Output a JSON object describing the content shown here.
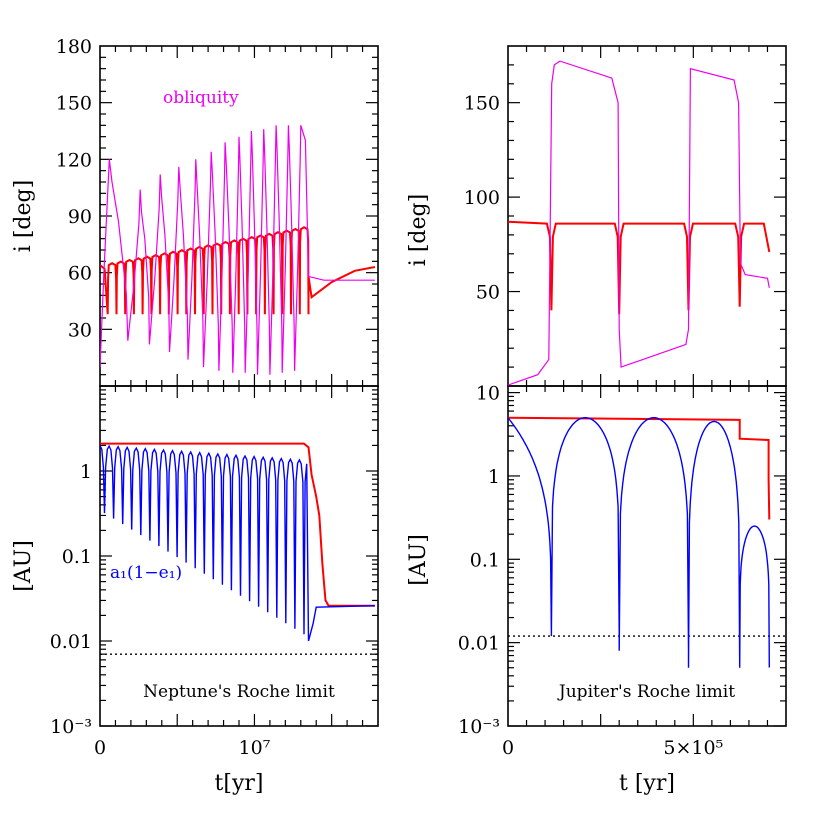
{
  "chart_data": [
    {
      "panel": "top-left",
      "type": "line",
      "xlim": [
        0,
        18000000
      ],
      "ylim": [
        0,
        180
      ],
      "y_ticks": [
        30,
        60,
        90,
        120,
        150,
        180
      ],
      "y_tick_labels": [
        "30",
        "60",
        "90",
        "120",
        "150",
        "180"
      ],
      "xlabel": "",
      "ylabel": "i [deg]",
      "annotation": "obliquity",
      "grid": false,
      "series": [
        {
          "color": "#ff0000",
          "oscillation": {
            "cycles": 23,
            "t_start": 500000,
            "t_end": 13500000,
            "min": 38,
            "max_start": 65,
            "max_end": 84
          },
          "after_end": [
            {
              "t": 13500000,
              "y": 58
            },
            {
              "t": 13700000,
              "y": 47
            },
            {
              "t": 15000000,
              "y": 55
            },
            {
              "t": 16500000,
              "y": 61
            },
            {
              "t": 17800000,
              "y": 63
            }
          ]
        },
        {
          "color": "#ee00ee",
          "flip_peaks": [
            {
              "t": 600000,
              "y": 120
            },
            {
              "t": 2600000,
              "y": 104
            },
            {
              "t": 3900000,
              "y": 112
            },
            {
              "t": 5100000,
              "y": 116
            },
            {
              "t": 6200000,
              "y": 120
            },
            {
              "t": 7200000,
              "y": 124
            },
            {
              "t": 8100000,
              "y": 129
            },
            {
              "t": 9000000,
              "y": 132
            },
            {
              "t": 9800000,
              "y": 135
            },
            {
              "t": 10600000,
              "y": 136
            },
            {
              "t": 11400000,
              "y": 138
            },
            {
              "t": 12200000,
              "y": 138
            },
            {
              "t": 13000000,
              "y": 138
            }
          ],
          "flip_troughs": [
            {
              "t": 1800000,
              "y": 24
            },
            {
              "t": 3200000,
              "y": 22
            },
            {
              "t": 4500000,
              "y": 18
            },
            {
              "t": 5700000,
              "y": 14
            },
            {
              "t": 6700000,
              "y": 10
            },
            {
              "t": 7700000,
              "y": 8
            },
            {
              "t": 8600000,
              "y": 7
            },
            {
              "t": 9400000,
              "y": 7
            },
            {
              "t": 10200000,
              "y": 6
            },
            {
              "t": 11000000,
              "y": 6
            },
            {
              "t": 11800000,
              "y": 7
            },
            {
              "t": 12600000,
              "y": 8
            }
          ],
          "end_value": 56
        }
      ]
    },
    {
      "panel": "bottom-left",
      "type": "line",
      "xlim": [
        0,
        18000000
      ],
      "ylim": [
        0.001,
        10
      ],
      "y_scale": "log",
      "x_ticks": [
        0,
        10000000
      ],
      "x_tick_labels": [
        "0",
        "10⁷"
      ],
      "y_ticks": [
        0.001,
        0.01,
        0.1,
        1
      ],
      "y_tick_labels": [
        "10⁻³",
        "0.01",
        "0.1",
        "1"
      ],
      "xlabel": "t[yr]",
      "ylabel": "[AU]",
      "annotation": "a₁(1−e₁)",
      "roche_label": "Neptune's Roche limit",
      "roche_limit": 0.007,
      "grid": false,
      "series": [
        {
          "color": "#ff0000",
          "points": [
            {
              "t": 0,
              "y": 2.1
            },
            {
              "t": 13200000,
              "y": 2.1
            },
            {
              "t": 13500000,
              "y": 1.9
            },
            {
              "t": 13700000,
              "y": 0.9
            },
            {
              "t": 14000000,
              "y": 0.5
            },
            {
              "t": 14200000,
              "y": 0.3
            },
            {
              "t": 14400000,
              "y": 0.08
            },
            {
              "t": 14600000,
              "y": 0.03
            },
            {
              "t": 14800000,
              "y": 0.026
            },
            {
              "t": 17800000,
              "y": 0.026
            }
          ]
        },
        {
          "color": "#0000ff",
          "oscillation": {
            "cycles": 23,
            "t_start": 0,
            "t_end": 13500000,
            "max_start": 2.0,
            "max_end": 1.35,
            "min_start": 0.32,
            "min_end": 0.012
          },
          "after_end": [
            {
              "t": 13500000,
              "y": 0.01
            },
            {
              "t": 13800000,
              "y": 0.016
            },
            {
              "t": 14000000,
              "y": 0.025
            },
            {
              "t": 17800000,
              "y": 0.026
            }
          ]
        }
      ]
    },
    {
      "panel": "top-right",
      "type": "line",
      "xlim": [
        0,
        750000
      ],
      "ylim": [
        0,
        180
      ],
      "y_ticks": [
        50,
        100,
        150
      ],
      "y_tick_labels": [
        "50",
        "100",
        "150"
      ],
      "xlabel": "",
      "ylabel": "i [deg]",
      "grid": false,
      "series": [
        {
          "color": "#ff0000",
          "base_value": 87,
          "dips": [
            {
              "t": 117000,
              "y": 40
            },
            {
              "t": 300000,
              "y": 38
            },
            {
              "t": 487000,
              "y": 40
            },
            {
              "t": 625000,
              "y": 42
            }
          ],
          "end": [
            {
              "t": 690000,
              "y": 86
            },
            {
              "t": 705000,
              "y": 71
            }
          ]
        },
        {
          "color": "#ee00ee",
          "points": [
            {
              "t": 0,
              "y": 0.5
            },
            {
              "t": 80000,
              "y": 6
            },
            {
              "t": 110000,
              "y": 14
            },
            {
              "t": 118000,
              "y": 160
            },
            {
              "t": 125000,
              "y": 170
            },
            {
              "t": 140000,
              "y": 172
            },
            {
              "t": 280000,
              "y": 163
            },
            {
              "t": 297000,
              "y": 150
            },
            {
              "t": 300000,
              "y": 30
            },
            {
              "t": 305000,
              "y": 10
            },
            {
              "t": 480000,
              "y": 22
            },
            {
              "t": 487000,
              "y": 30
            },
            {
              "t": 492000,
              "y": 168
            },
            {
              "t": 610000,
              "y": 162
            },
            {
              "t": 622000,
              "y": 150
            },
            {
              "t": 627000,
              "y": 65
            },
            {
              "t": 640000,
              "y": 59
            },
            {
              "t": 700000,
              "y": 57
            },
            {
              "t": 705000,
              "y": 52
            }
          ]
        }
      ]
    },
    {
      "panel": "bottom-right",
      "type": "line",
      "xlim": [
        0,
        750000
      ],
      "ylim": [
        0.001,
        12
      ],
      "y_scale": "log",
      "x_ticks": [
        0,
        500000
      ],
      "x_tick_labels": [
        "0",
        "5×10⁵"
      ],
      "y_ticks": [
        0.001,
        0.01,
        0.1,
        1,
        10
      ],
      "y_tick_labels": [
        "10⁻³",
        "0.01",
        "0.1",
        "1",
        "10"
      ],
      "xlabel": "t [yr]",
      "ylabel": "[AU]",
      "roche_label": "Jupiter's Roche limit",
      "roche_limit": 0.012,
      "grid": false,
      "series": [
        {
          "color": "#ff0000",
          "points": [
            {
              "t": 0,
              "y": 5
            },
            {
              "t": 625000,
              "y": 4.7
            },
            {
              "t": 625000,
              "y": 2.8
            },
            {
              "t": 703000,
              "y": 2.7
            },
            {
              "t": 703000,
              "y": 0.9
            },
            {
              "t": 705000,
              "y": 0.3
            }
          ]
        },
        {
          "color": "#0000ff",
          "arches": [
            {
              "t_start": 0,
              "t_end": 117000,
              "peak": 5,
              "end_min": 0.012
            },
            {
              "t_start": 117000,
              "t_end": 300000,
              "peak": 5,
              "end_min": 0.013
            },
            {
              "t_start": 300000,
              "t_end": 487000,
              "peak": 5,
              "end_min": 0.008
            },
            {
              "t_start": 487000,
              "t_end": 625000,
              "peak": 4.5,
              "end_min": 0.005
            },
            {
              "t_start": 625000,
              "t_end": 705000,
              "peak": 0.25,
              "end_min": 0.005
            }
          ]
        }
      ]
    }
  ]
}
